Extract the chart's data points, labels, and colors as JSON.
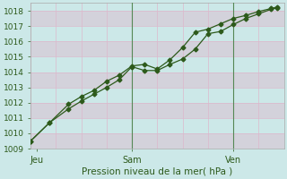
{
  "title": "Pression niveau de la mer( hPa )",
  "ylim": [
    1009,
    1018.5
  ],
  "yticks": [
    1009,
    1010,
    1011,
    1012,
    1013,
    1014,
    1015,
    1016,
    1017,
    1018
  ],
  "xlim": [
    0,
    20
  ],
  "xtick_positions": [
    0.5,
    8,
    16
  ],
  "xtick_labels": [
    "Jeu",
    "Sam",
    "Ven"
  ],
  "bg_color": "#cce8e8",
  "grid_h_color": "#ddb8cc",
  "line_color": "#2d5a1b",
  "line1_x": [
    0,
    1.5,
    3,
    4,
    5,
    6,
    7,
    8,
    9,
    10,
    11,
    12,
    13,
    14,
    15,
    16,
    17,
    18,
    19,
    19.5
  ],
  "line1_y": [
    1009.5,
    1010.7,
    1011.6,
    1012.1,
    1012.55,
    1013.0,
    1013.5,
    1014.35,
    1014.1,
    1014.1,
    1014.5,
    1014.85,
    1015.5,
    1016.5,
    1016.65,
    1017.1,
    1017.5,
    1017.8,
    1018.1,
    1018.2
  ],
  "line2_x": [
    0,
    1.5,
    3,
    4,
    5,
    6,
    7,
    8,
    9,
    10,
    11,
    12,
    13,
    14,
    15,
    16,
    17,
    18,
    19,
    19.5
  ],
  "line2_y": [
    1009.5,
    1010.7,
    1011.9,
    1012.4,
    1012.8,
    1013.4,
    1013.8,
    1014.4,
    1014.5,
    1014.2,
    1014.8,
    1015.6,
    1016.6,
    1016.8,
    1017.15,
    1017.5,
    1017.7,
    1017.95,
    1018.15,
    1018.25
  ],
  "marker_size": 2.5,
  "linewidth": 0.9,
  "vline_positions": [
    8,
    16
  ],
  "vline_color": "#558855"
}
